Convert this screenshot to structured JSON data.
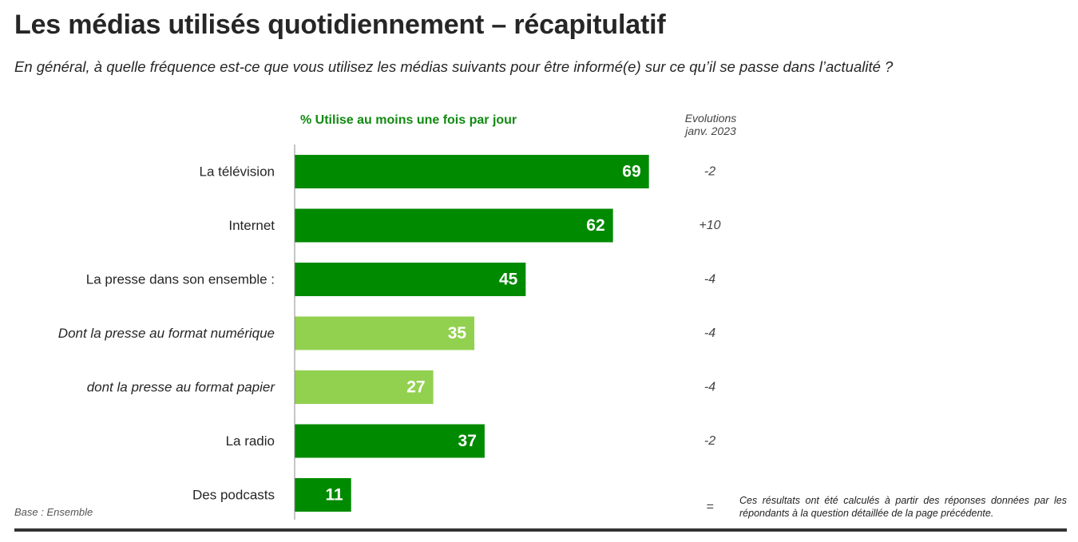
{
  "header": {
    "title": "Les médias utilisés quotidiennement – récapitulatif",
    "subtitle": "En général, à quelle fréquence est-ce que vous utilisez les médias suivants pour être informé(e) sur ce qu’il se passe dans l’actualité ?"
  },
  "chart_data": {
    "type": "bar",
    "orientation": "horizontal",
    "series_name": "% Utilise au moins une fois par jour",
    "evolution_header": [
      "Evolutions",
      "janv. 2023"
    ],
    "categories": [
      "La télévision",
      "Internet",
      "La presse dans son ensemble :",
      "Dont la presse au format numérique",
      "dont la presse au format papier",
      "La radio",
      "Des podcasts"
    ],
    "values": [
      69,
      62,
      45,
      35,
      27,
      37,
      11
    ],
    "evolutions": [
      "-2",
      "+10",
      "-4",
      "-4",
      "-4",
      "-2",
      "="
    ],
    "italic_categories": [
      false,
      false,
      false,
      true,
      true,
      false,
      false
    ],
    "bar_colors": [
      "#008a00",
      "#008a00",
      "#008a00",
      "#92d14f",
      "#92d14f",
      "#008a00",
      "#008a00"
    ],
    "xlim": [
      0,
      100
    ]
  },
  "footer": {
    "base": "Base : Ensemble",
    "note": "Ces résultats ont été calculés à partir des réponses données par les répondants à la question détaillée de la page précédente."
  },
  "colors": {
    "dark_green": "#008a00",
    "light_green": "#92d14f",
    "series_label_green": "#118a11"
  }
}
